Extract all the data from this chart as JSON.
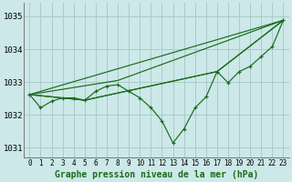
{
  "background_color": "#cce8e8",
  "grid_color": "#aacccc",
  "line_color": "#1a6b1a",
  "title": "Graphe pression niveau de la mer (hPa)",
  "x_ticks": [
    0,
    1,
    2,
    3,
    4,
    5,
    6,
    7,
    8,
    9,
    10,
    11,
    12,
    13,
    14,
    15,
    16,
    17,
    18,
    19,
    20,
    21,
    22,
    23
  ],
  "ylim": [
    1030.7,
    1035.4
  ],
  "yticks": [
    1031,
    1032,
    1033,
    1034,
    1035
  ],
  "main_series_x": [
    0,
    1,
    2,
    3,
    4,
    5,
    6,
    7,
    8,
    9,
    10,
    11,
    12,
    13,
    14,
    15,
    16,
    17,
    18,
    19,
    20,
    21,
    22,
    23
  ],
  "main_series_y": [
    1032.62,
    1032.22,
    1032.42,
    1032.52,
    1032.52,
    1032.45,
    1032.72,
    1032.88,
    1032.92,
    1032.72,
    1032.52,
    1032.22,
    1031.82,
    1031.15,
    1031.58,
    1032.22,
    1032.55,
    1033.32,
    1032.98,
    1033.32,
    1033.48,
    1033.78,
    1034.08,
    1034.88
  ],
  "straight_lines": [
    {
      "x": [
        0,
        23
      ],
      "y": [
        1032.62,
        1034.88
      ]
    },
    {
      "x": [
        0,
        8,
        23
      ],
      "y": [
        1032.62,
        1033.05,
        1034.88
      ]
    },
    {
      "x": [
        0,
        5,
        17,
        23
      ],
      "y": [
        1032.62,
        1032.45,
        1033.32,
        1034.88
      ]
    },
    {
      "x": [
        0,
        5,
        17,
        23
      ],
      "y": [
        1032.62,
        1032.45,
        1033.32,
        1034.88
      ]
    }
  ]
}
